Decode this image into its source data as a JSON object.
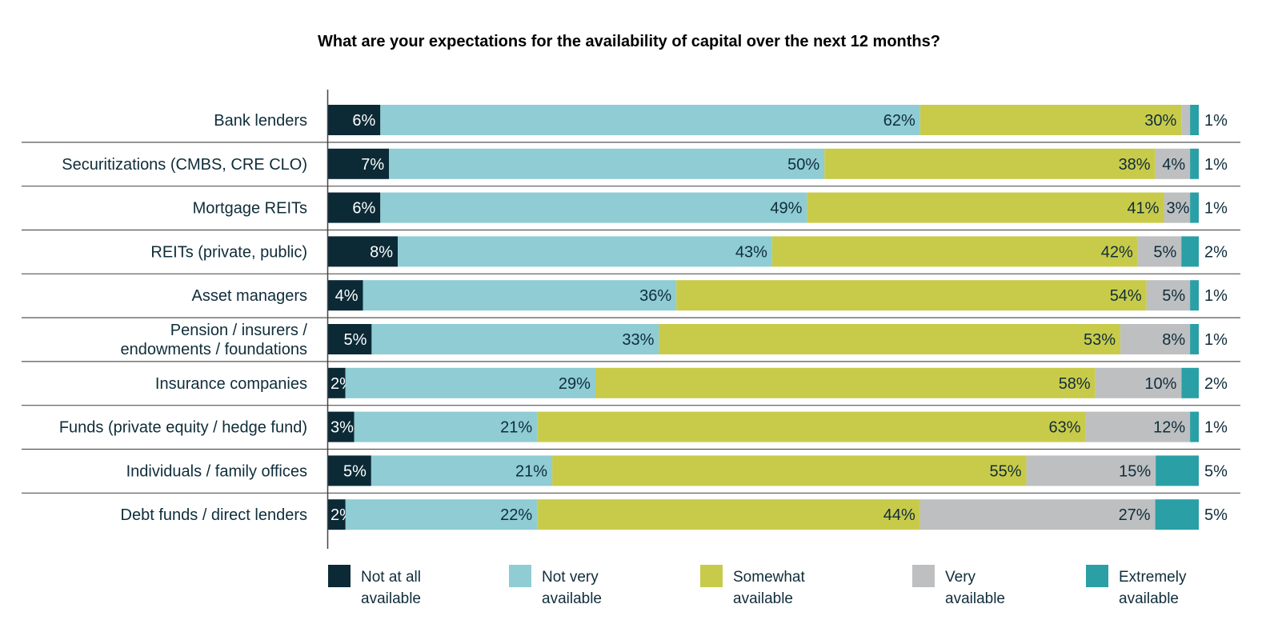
{
  "chart_data": {
    "type": "bar",
    "orientation": "horizontal-stacked-100",
    "title": "What are your expectations for the availability of capital over the next 12 months?",
    "categories": [
      [
        "Bank lenders"
      ],
      [
        "Securitizations (CMBS, CRE CLO)"
      ],
      [
        "Mortgage REITs"
      ],
      [
        "REITs (private, public)"
      ],
      [
        "Asset managers"
      ],
      [
        "Pension / insurers /",
        "endowments / foundations"
      ],
      [
        "Insurance companies"
      ],
      [
        "Funds (private equity / hedge fund)"
      ],
      [
        "Individuals / family offices"
      ],
      [
        "Debt funds / direct lenders"
      ]
    ],
    "series": [
      {
        "name": "Not at all available",
        "legend": [
          "Not at all",
          "available"
        ],
        "color": "#0b2a36",
        "label_color": "#ffffff",
        "values": [
          6,
          7,
          6,
          8,
          4,
          5,
          2,
          3,
          5,
          2
        ]
      },
      {
        "name": "Not very available",
        "legend": [
          "Not very",
          "available"
        ],
        "color": "#8fccd4",
        "label_color": "#0f2d3a",
        "values": [
          62,
          50,
          49,
          43,
          36,
          33,
          29,
          21,
          21,
          22
        ]
      },
      {
        "name": "Somewhat available",
        "legend": [
          "Somewhat",
          "available"
        ],
        "color": "#c8cb4a",
        "label_color": "#0f2d3a",
        "values": [
          30,
          38,
          41,
          42,
          54,
          53,
          58,
          63,
          55,
          44
        ]
      },
      {
        "name": "Very available",
        "legend": [
          "Very",
          "available"
        ],
        "color": "#bdbfc1",
        "label_color": "#0f2d3a",
        "values": [
          1,
          4,
          3,
          5,
          5,
          8,
          10,
          12,
          15,
          27
        ]
      },
      {
        "name": "Extremely available",
        "legend": [
          "Extremely",
          "available"
        ],
        "color": "#2a9fa6",
        "label_color": "#0f2d3a",
        "values": [
          1,
          1,
          1,
          2,
          1,
          1,
          2,
          1,
          5,
          5
        ]
      }
    ],
    "unlabeled": [
      [
        0,
        3
      ]
    ],
    "unit": "%",
    "legend_position": "bottom"
  }
}
